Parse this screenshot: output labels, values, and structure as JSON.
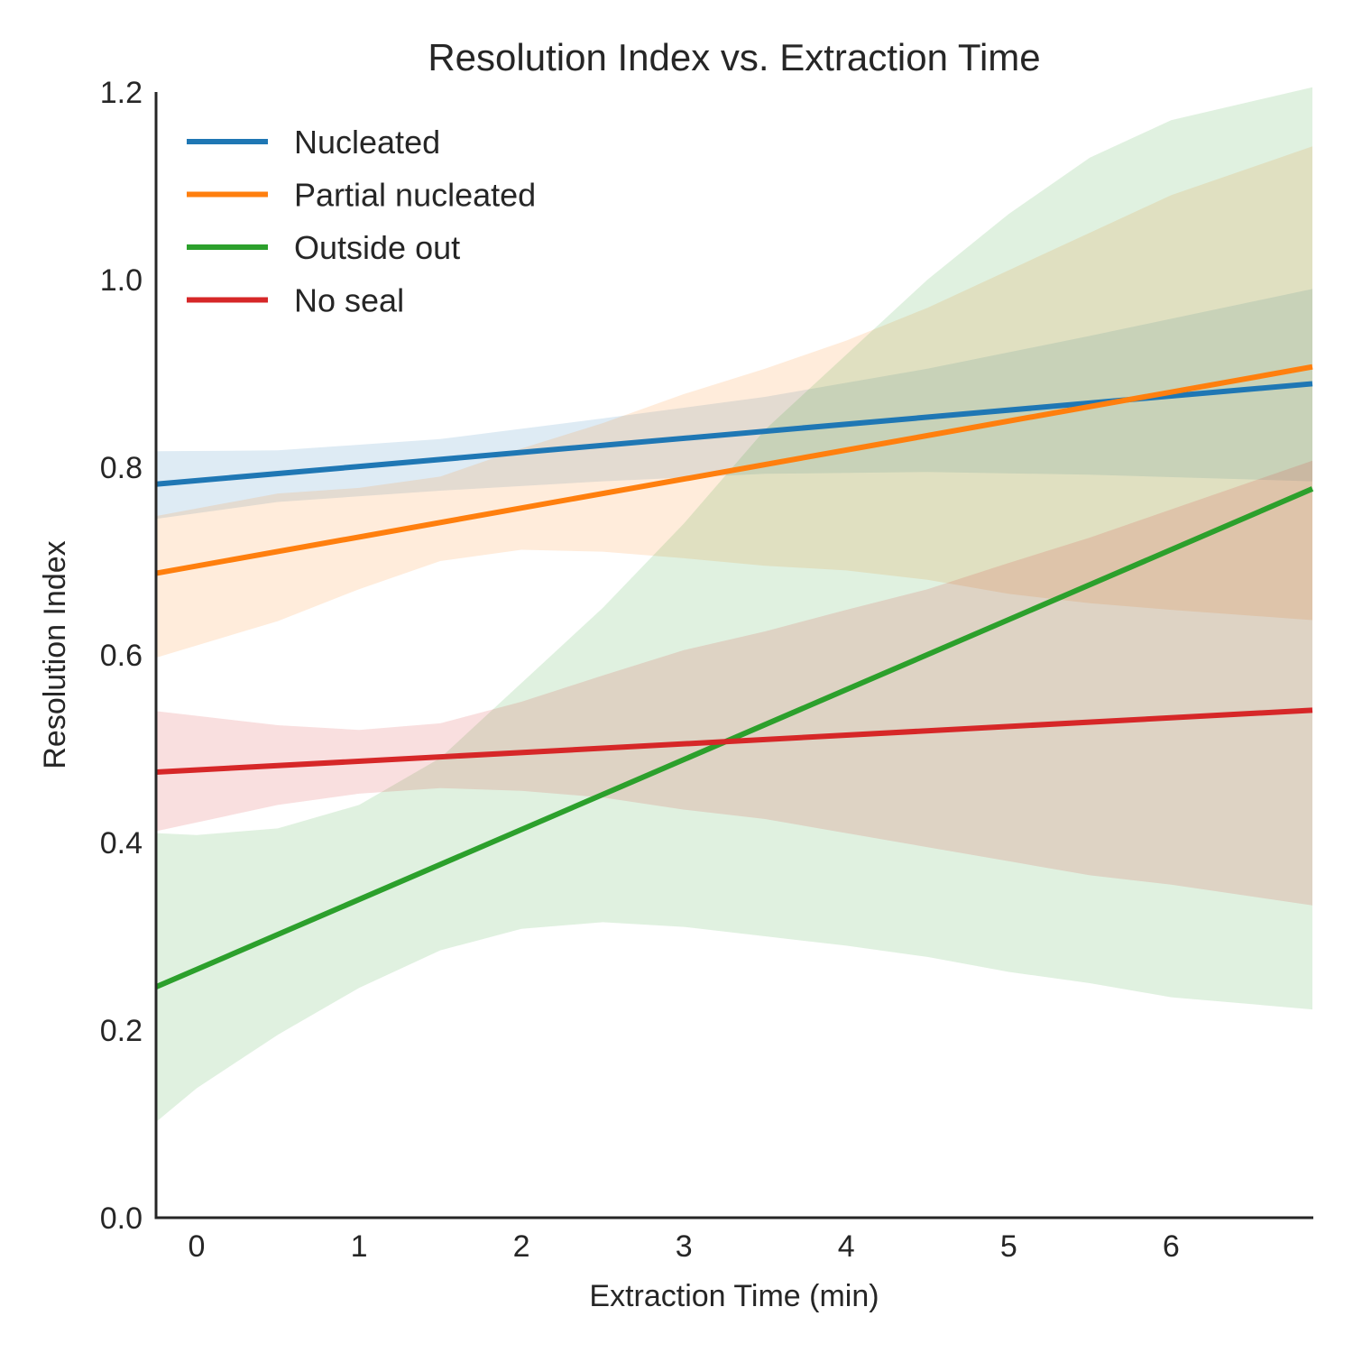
{
  "chart_data": {
    "type": "line",
    "title": "Resolution Index vs. Extraction Time",
    "xlabel": "Extraction Time (min)",
    "ylabel": "Resolution Index",
    "xlim": [
      -0.25,
      6.87
    ],
    "ylim": [
      0,
      1.2
    ],
    "xticks": [
      0,
      1,
      2,
      3,
      4,
      5,
      6
    ],
    "xtick_labels": [
      "0",
      "1",
      "2",
      "3",
      "4",
      "5",
      "6"
    ],
    "yticks": [
      0.0,
      0.2,
      0.4,
      0.6,
      0.8,
      1.0,
      1.2
    ],
    "ytick_labels": [
      "0.0",
      "0.2",
      "0.4",
      "0.6",
      "0.8",
      "1.0",
      "1.2"
    ],
    "grid": false,
    "legend_position": "top-left",
    "series": [
      {
        "name": "Nucleated",
        "color": "#1f77b4",
        "x": [
          -0.25,
          6.87
        ],
        "y": [
          0.782,
          0.889
        ],
        "ci": {
          "x": [
            -0.25,
            0.5,
            1.5,
            2.5,
            3.5,
            4.5,
            5.5,
            6.87
          ],
          "lower": [
            0.745,
            0.763,
            0.775,
            0.785,
            0.793,
            0.795,
            0.792,
            0.785
          ],
          "upper": [
            0.817,
            0.818,
            0.83,
            0.852,
            0.875,
            0.905,
            0.94,
            0.99
          ]
        }
      },
      {
        "name": "Partial nucleated",
        "color": "#ff7f0e",
        "x": [
          -0.25,
          6.87
        ],
        "y": [
          0.687,
          0.907
        ],
        "ci": {
          "x": [
            -0.25,
            0.5,
            1.0,
            1.5,
            2.0,
            2.5,
            3.0,
            3.5,
            4.0,
            4.5,
            5.0,
            5.5,
            6.0,
            6.87
          ],
          "lower": [
            0.597,
            0.636,
            0.67,
            0.7,
            0.712,
            0.71,
            0.703,
            0.695,
            0.69,
            0.68,
            0.665,
            0.655,
            0.648,
            0.637
          ],
          "upper": [
            0.748,
            0.772,
            0.778,
            0.79,
            0.82,
            0.847,
            0.878,
            0.905,
            0.935,
            0.97,
            1.01,
            1.05,
            1.09,
            1.142
          ]
        }
      },
      {
        "name": "Outside out",
        "color": "#2ca02c",
        "x": [
          -0.25,
          6.87
        ],
        "y": [
          0.246,
          0.777
        ],
        "ci": {
          "x": [
            -0.25,
            0.0,
            0.5,
            1.0,
            1.5,
            2.0,
            2.5,
            3.0,
            3.5,
            4.0,
            4.5,
            5.0,
            5.5,
            6.0,
            6.87
          ],
          "lower": [
            0.102,
            0.138,
            0.195,
            0.245,
            0.285,
            0.308,
            0.315,
            0.31,
            0.3,
            0.29,
            0.278,
            0.262,
            0.25,
            0.235,
            0.222
          ],
          "upper": [
            0.41,
            0.408,
            0.415,
            0.44,
            0.49,
            0.57,
            0.65,
            0.74,
            0.84,
            0.92,
            1.0,
            1.07,
            1.13,
            1.17,
            1.205
          ]
        }
      },
      {
        "name": "No seal",
        "color": "#d62728",
        "x": [
          -0.25,
          6.87
        ],
        "y": [
          0.475,
          0.541
        ],
        "ci": {
          "x": [
            -0.25,
            0.5,
            1.0,
            1.5,
            2.0,
            2.5,
            3.0,
            3.5,
            4.0,
            4.5,
            5.0,
            5.5,
            6.0,
            6.87
          ],
          "lower": [
            0.412,
            0.44,
            0.452,
            0.458,
            0.455,
            0.448,
            0.435,
            0.425,
            0.41,
            0.395,
            0.38,
            0.365,
            0.355,
            0.333
          ],
          "upper": [
            0.54,
            0.525,
            0.52,
            0.527,
            0.55,
            0.578,
            0.605,
            0.625,
            0.648,
            0.67,
            0.698,
            0.725,
            0.755,
            0.807
          ]
        }
      }
    ]
  }
}
